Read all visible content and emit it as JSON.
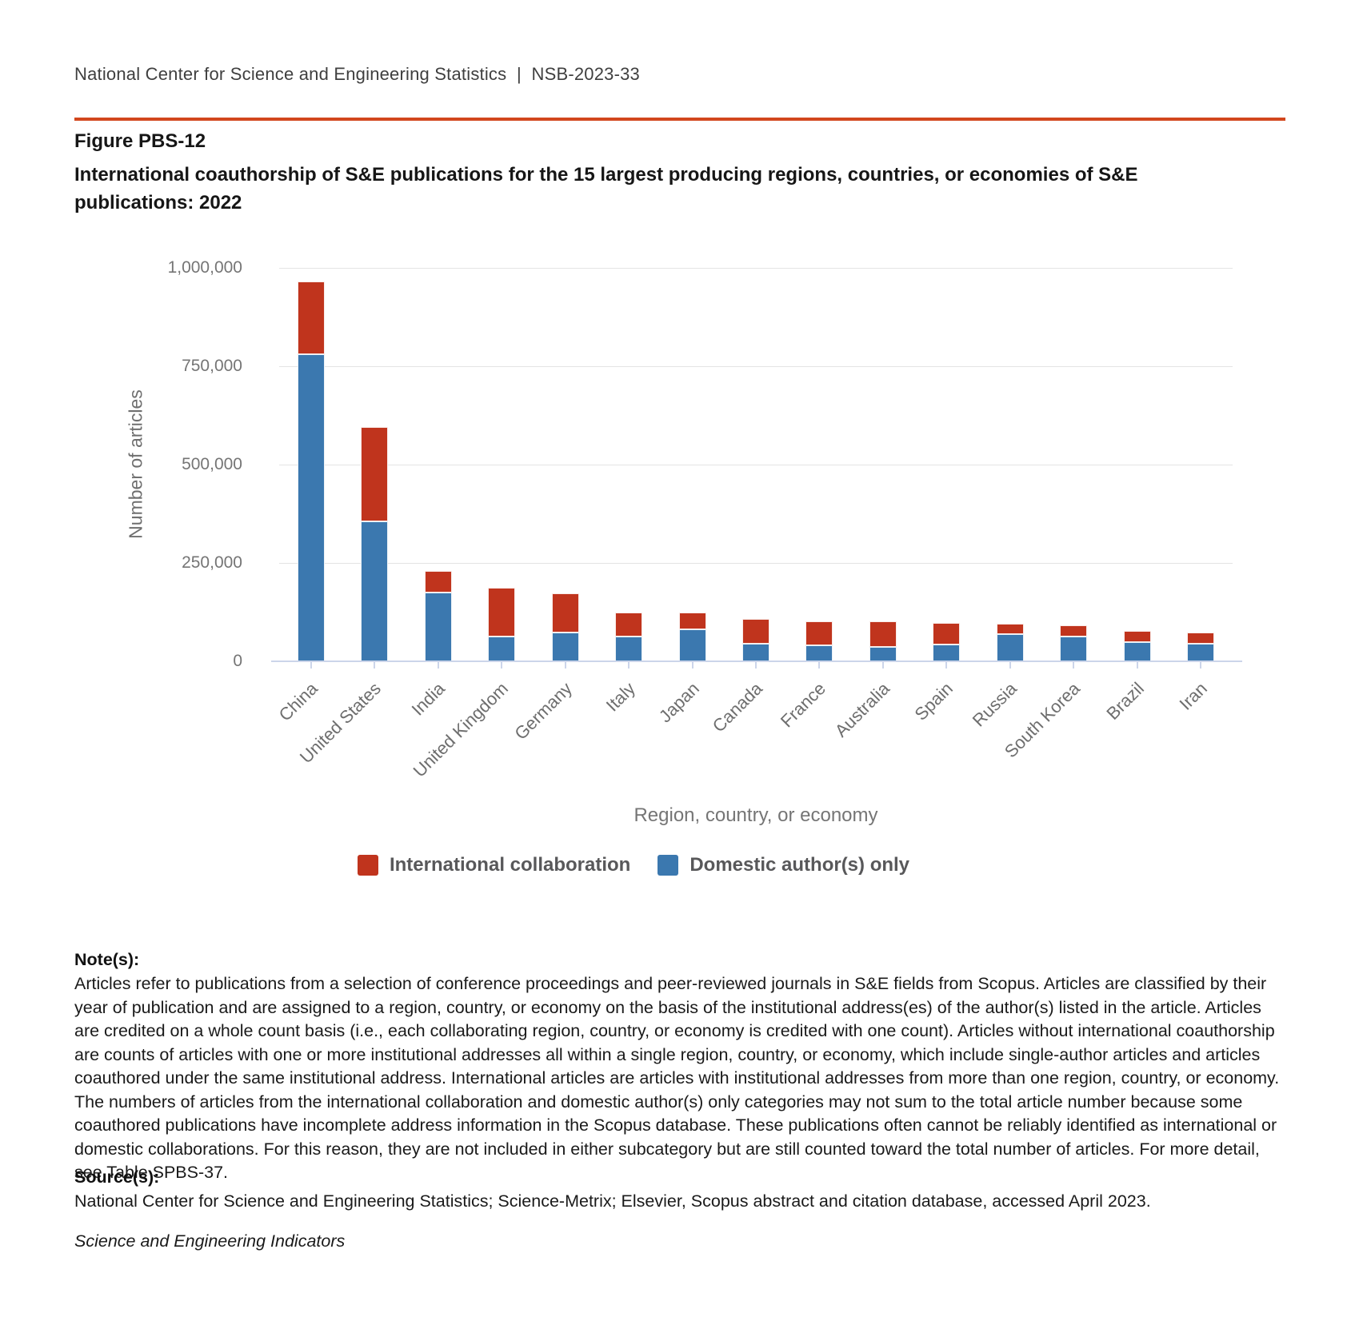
{
  "header": {
    "text": "National Center for Science and Engineering Statistics  |  NSB-2023-33"
  },
  "figure": {
    "label": "Figure PBS-12",
    "title": "International coauthorship of S&E publications for the 15 largest producing regions, countries, or economies of S&E publications: 2022"
  },
  "chart_data": {
    "type": "bar",
    "stacked": true,
    "title": "International coauthorship of S&E publications for the 15 largest producing regions, countries, or economies of S&E publications: 2022",
    "xlabel": "Region, country, or economy",
    "ylabel": "Number of articles",
    "ylim": [
      0,
      1000000
    ],
    "grid": "horizontal",
    "legend_position": "bottom",
    "yticks": [
      {
        "value": 0,
        "label": "0"
      },
      {
        "value": 250000,
        "label": "250,000"
      },
      {
        "value": 500000,
        "label": "500,000"
      },
      {
        "value": 750000,
        "label": "750,000"
      },
      {
        "value": 1000000,
        "label": "1,000,000"
      }
    ],
    "categories": [
      "China",
      "United States",
      "India",
      "United Kingdom",
      "Germany",
      "Italy",
      "Japan",
      "Canada",
      "France",
      "Australia",
      "Spain",
      "Russia",
      "South Korea",
      "Brazil",
      "Iran"
    ],
    "series": [
      {
        "name": "Domestic author(s) only",
        "color": "#3b78af",
        "values": [
          780000,
          355000,
          175000,
          63000,
          73000,
          63000,
          81000,
          44000,
          40000,
          36000,
          43000,
          70000,
          62000,
          49000,
          44000
        ]
      },
      {
        "name": "International collaboration",
        "color": "#c0341d",
        "values": [
          185000,
          240000,
          55000,
          124000,
          99000,
          61000,
          43000,
          63000,
          62000,
          65000,
          55000,
          26000,
          30000,
          29000,
          29000
        ]
      }
    ]
  },
  "legend": {
    "items": [
      {
        "label": "International collaboration",
        "color": "#c0341d"
      },
      {
        "label": "Domestic author(s) only",
        "color": "#3b78af"
      }
    ]
  },
  "notes": {
    "heading": "Note(s):",
    "body": "Articles refer to publications from a selection of conference proceedings and peer-reviewed journals in S&E fields from Scopus. Articles are classified by their year of publication and are assigned to a region, country, or economy on the basis of the institutional address(es) of the author(s) listed in the article. Articles are credited on a whole count basis (i.e., each collaborating region, country, or economy is credited with one count). Articles without international coauthorship are counts of articles with one or more institutional addresses all within a single region, country, or economy, which include single-author articles and articles coauthored under the same institutional address. International articles are articles with institutional addresses from more than one region, country, or economy. The numbers of articles from the international collaboration and domestic author(s) only categories may not sum to the total article number because some coauthored publications have incomplete address information in the Scopus database. These publications often cannot be reliably identified as international or domestic collaborations. For this reason, they are not included in either subcategory but are still counted toward the total number of articles. For more detail, see Table SPBS-37."
  },
  "sources": {
    "heading": "Source(s):",
    "body": "National Center for Science and Engineering Statistics; Science-Metrix; Elsevier, Scopus abstract and citation database, accessed April 2023."
  },
  "footer": {
    "text": "Science and Engineering Indicators"
  }
}
